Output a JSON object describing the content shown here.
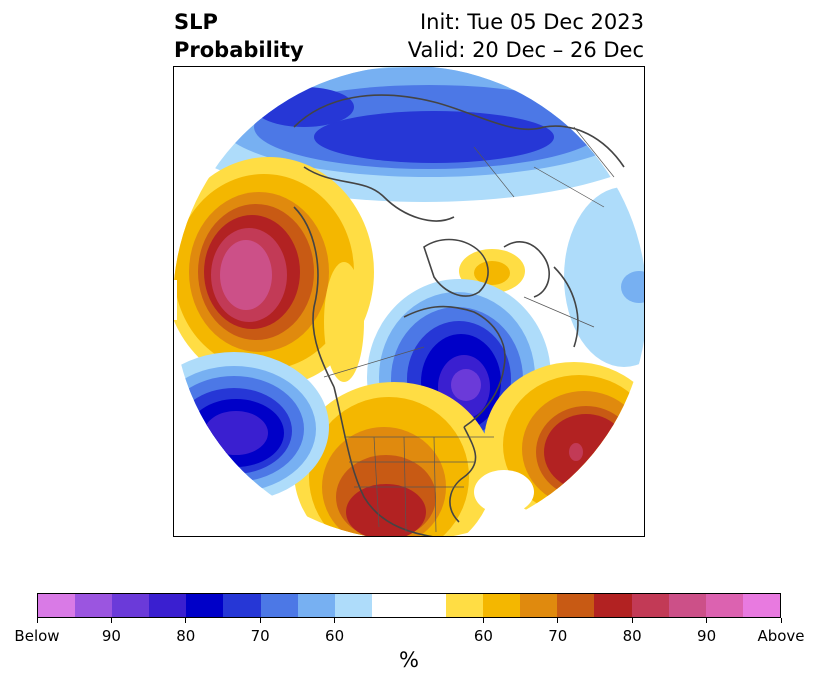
{
  "title": {
    "variable": "SLP",
    "product": "Probability",
    "init": "Init: Tue 05 Dec 2023",
    "valid": "Valid: 20 Dec – 26 Dec"
  },
  "colorbar": {
    "colors": [
      "#d97ae6",
      "#9b55e0",
      "#6b3ad9",
      "#3a1fd0",
      "#0000c8",
      "#2637d6",
      "#4c78e6",
      "#77b0f2",
      "#aedcfa",
      "#ffffff",
      "#ffffff",
      "#ffdd44",
      "#f4b700",
      "#e08a0e",
      "#c85a14",
      "#b22222",
      "#c23a56",
      "#cc5088",
      "#dc62b0",
      "#e87ae0"
    ],
    "tick_labels": [
      "Below",
      "90",
      "80",
      "70",
      "60",
      "60",
      "70",
      "80",
      "90",
      "Above"
    ],
    "unit": "%"
  },
  "map": {
    "projection": "north-polar-stereographic",
    "legend": "colorbar-bottom"
  }
}
